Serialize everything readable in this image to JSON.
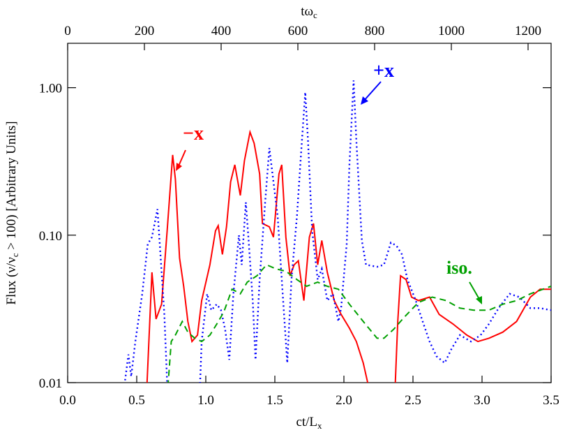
{
  "chart_data": {
    "type": "line",
    "xlabel": [
      "ct/L",
      "x"
    ],
    "x2label": [
      "tω",
      "c"
    ],
    "ylabel": [
      "Flux (ν/ν",
      "c",
      " > 100) [Arbitrary Units]"
    ],
    "xlim": [
      0,
      3.5
    ],
    "xticks": [
      {
        "value": 0,
        "label": "0.0"
      },
      0.5,
      {
        "value": 1,
        "label": "1.0"
      },
      1.5,
      {
        "value": 2,
        "label": "2.0"
      },
      2.5,
      {
        "value": 3,
        "label": "3.0"
      },
      3.5
    ],
    "x2lim": [
      0,
      1260
    ],
    "x2ticks": [
      0,
      200,
      400,
      600,
      800,
      1000,
      1200
    ],
    "ylim": [
      0.01,
      2.0
    ],
    "yticks": [
      0.01,
      {
        "value": 0.1,
        "label": "0.10"
      },
      {
        "value": 1,
        "label": "1.00"
      }
    ],
    "ylog": true,
    "series": [
      {
        "name": "−x",
        "color": "#ff0000",
        "dash": "solid",
        "x": [
          0.57,
          0.61,
          0.64,
          0.68,
          0.72,
          0.76,
          0.78,
          0.81,
          0.84,
          0.87,
          0.9,
          0.94,
          0.97,
          1.03,
          1.07,
          1.09,
          1.12,
          1.15,
          1.18,
          1.21,
          1.25,
          1.28,
          1.32,
          1.35,
          1.39,
          1.41,
          1.46,
          1.49,
          1.53,
          1.55,
          1.58,
          1.61,
          1.64,
          1.67,
          1.71,
          1.75,
          1.78,
          1.81,
          1.84,
          1.88,
          1.93,
          1.98,
          2.04,
          2.09,
          2.14,
          2.18,
          2.2,
          2.36,
          2.37,
          2.39,
          2.41,
          2.45,
          2.49,
          2.54,
          2.62,
          2.69,
          2.79,
          2.89,
          2.97,
          3.05,
          3.15,
          3.25,
          3.35,
          3.42,
          3.5
        ],
        "values": [
          0.008,
          0.056,
          0.027,
          0.034,
          0.107,
          0.35,
          0.24,
          0.07,
          0.045,
          0.026,
          0.019,
          0.021,
          0.036,
          0.063,
          0.107,
          0.116,
          0.074,
          0.114,
          0.23,
          0.3,
          0.186,
          0.32,
          0.5,
          0.42,
          0.26,
          0.12,
          0.114,
          0.097,
          0.26,
          0.3,
          0.097,
          0.053,
          0.063,
          0.067,
          0.036,
          0.097,
          0.12,
          0.063,
          0.092,
          0.056,
          0.036,
          0.029,
          0.0234,
          0.019,
          0.0136,
          0.0093,
          0.006,
          0.006,
          0.009,
          0.026,
          0.053,
          0.05,
          0.038,
          0.036,
          0.038,
          0.029,
          0.025,
          0.021,
          0.019,
          0.02,
          0.022,
          0.026,
          0.038,
          0.043,
          0.043
        ]
      },
      {
        "name": "+x",
        "color": "#0000ff",
        "dash": "dotted",
        "x": [
          0.4,
          0.44,
          0.46,
          0.49,
          0.54,
          0.58,
          0.61,
          0.65,
          0.67,
          0.7,
          0.72,
          0.74,
          0.95,
          0.97,
          1.01,
          1.04,
          1.08,
          1.11,
          1.14,
          1.17,
          1.2,
          1.24,
          1.26,
          1.29,
          1.31,
          1.34,
          1.36,
          1.39,
          1.43,
          1.46,
          1.49,
          1.52,
          1.55,
          1.59,
          1.62,
          1.66,
          1.69,
          1.72,
          1.74,
          1.77,
          1.81,
          1.84,
          1.88,
          1.92,
          1.96,
          1.98,
          2.02,
          2.04,
          2.07,
          2.09,
          2.13,
          2.16,
          2.24,
          2.29,
          2.34,
          2.38,
          2.42,
          2.46,
          2.52,
          2.57,
          2.62,
          2.67,
          2.73,
          2.78,
          2.84,
          2.92,
          2.99,
          3.05,
          3.12,
          3.2,
          3.27,
          3.35,
          3.42,
          3.5
        ],
        "values": [
          0.008,
          0.0155,
          0.011,
          0.019,
          0.04,
          0.087,
          0.097,
          0.15,
          0.078,
          0.029,
          0.01,
          0.006,
          0.006,
          0.019,
          0.04,
          0.031,
          0.034,
          0.031,
          0.023,
          0.0143,
          0.04,
          0.1,
          0.063,
          0.167,
          0.092,
          0.036,
          0.0143,
          0.05,
          0.167,
          0.39,
          0.23,
          0.135,
          0.05,
          0.0136,
          0.05,
          0.135,
          0.36,
          0.93,
          0.44,
          0.107,
          0.05,
          0.059,
          0.036,
          0.04,
          0.026,
          0.032,
          0.087,
          0.3,
          1.12,
          0.44,
          0.092,
          0.063,
          0.061,
          0.063,
          0.089,
          0.085,
          0.074,
          0.05,
          0.036,
          0.026,
          0.019,
          0.0151,
          0.0136,
          0.017,
          0.021,
          0.019,
          0.021,
          0.025,
          0.032,
          0.04,
          0.038,
          0.032,
          0.032,
          0.031
        ]
      },
      {
        "name": "iso.",
        "color": "#00a000",
        "dash": "dashed",
        "x": [
          0.72,
          0.75,
          0.78,
          0.83,
          0.87,
          0.92,
          0.97,
          1.03,
          1.08,
          1.13,
          1.19,
          1.25,
          1.3,
          1.37,
          1.44,
          1.51,
          1.58,
          1.66,
          1.73,
          1.81,
          1.88,
          1.96,
          2.04,
          2.14,
          2.24,
          2.29,
          2.36,
          2.44,
          2.54,
          2.64,
          2.74,
          2.84,
          2.94,
          3.05,
          3.15,
          3.25,
          3.35,
          3.5
        ],
        "values": [
          0.008,
          0.019,
          0.021,
          0.026,
          0.022,
          0.02,
          0.019,
          0.021,
          0.025,
          0.03,
          0.043,
          0.04,
          0.048,
          0.053,
          0.063,
          0.059,
          0.057,
          0.05,
          0.045,
          0.048,
          0.045,
          0.043,
          0.034,
          0.026,
          0.02,
          0.02,
          0.023,
          0.028,
          0.035,
          0.038,
          0.036,
          0.032,
          0.031,
          0.031,
          0.034,
          0.036,
          0.04,
          0.045
        ]
      }
    ]
  }
}
